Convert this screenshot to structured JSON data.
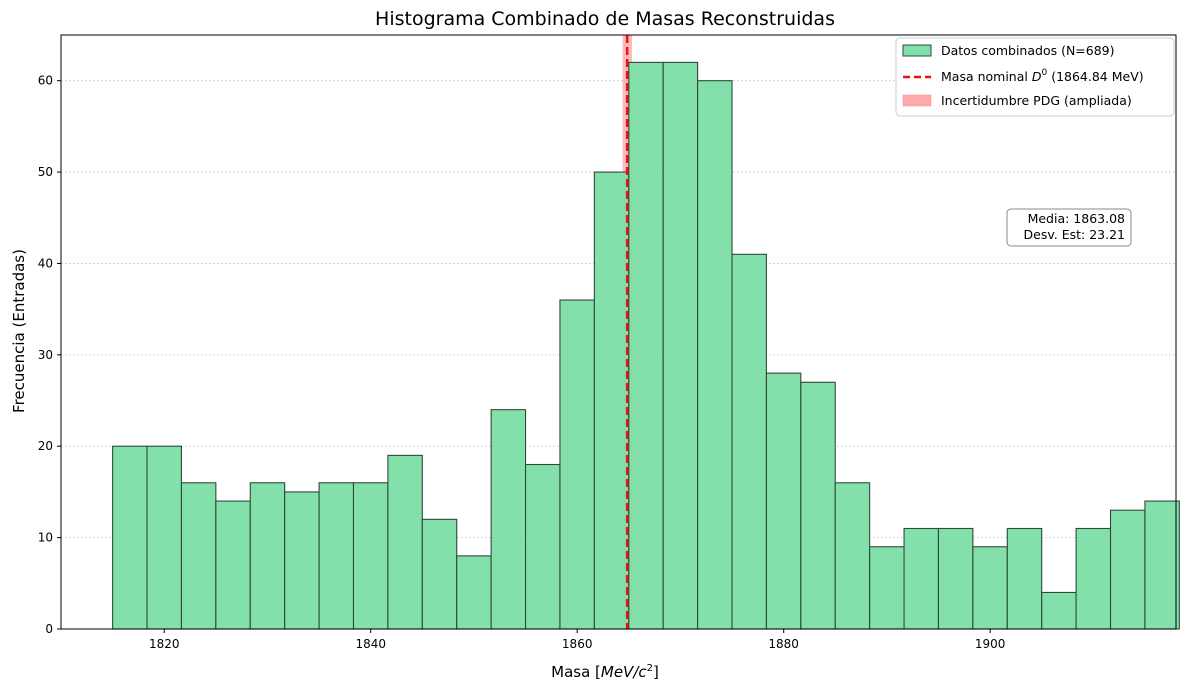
{
  "chart_data": {
    "type": "bar",
    "title": "Histograma Combinado de Masas Reconstruidas",
    "xlabel": "Masa",
    "xlabel_unit": "MeV/c",
    "xlabel_unit_exp": "2",
    "ylabel": "Frecuencia (Entradas)",
    "xlim": [
      1810,
      1918
    ],
    "ylim": [
      0,
      65
    ],
    "xticks": [
      1820,
      1840,
      1860,
      1880,
      1900
    ],
    "yticks": [
      0,
      10,
      20,
      30,
      40,
      50,
      60
    ],
    "grid": "horizontal dotted",
    "bins": {
      "start": 1815.0,
      "width": 3.333,
      "counts": [
        20,
        20,
        16,
        14,
        16,
        15,
        16,
        16,
        19,
        12,
        8,
        24,
        18,
        36,
        50,
        62,
        62,
        60,
        41,
        28,
        27,
        16,
        9,
        11,
        11,
        9,
        11,
        4,
        11,
        13,
        14
      ]
    },
    "nominal_mass": 1864.84,
    "uncertainty_band": [
      1864.4,
      1865.3
    ],
    "legend_position": "top-right",
    "legend": [
      {
        "label": "Datos combinados (N=689)"
      },
      {
        "label_pre": "Masa nominal ",
        "label_sym": "D",
        "label_sup": "0",
        "label_post": " (1864.84 MeV)"
      },
      {
        "label": "Incertidumbre PDG (ampliada)"
      }
    ],
    "stats": {
      "mean": "Media: 1863.08",
      "std": "Desv. Est: 23.21"
    }
  },
  "colors": {
    "bar_fill": "#7fdfa8",
    "bar_edge": "#2f4a3a",
    "nominal_line": "#ee1111",
    "band_fill": "#ffaaaa"
  }
}
